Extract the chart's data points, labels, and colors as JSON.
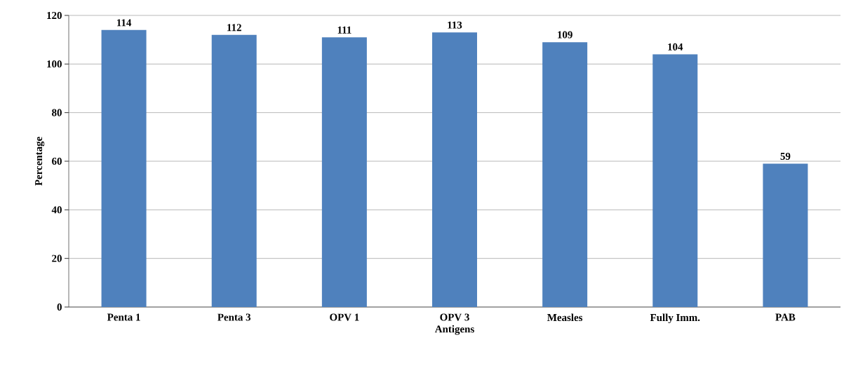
{
  "chart_data": {
    "type": "bar",
    "xlabel": "Antigens",
    "ylabel": "Percentage",
    "categories": [
      "Penta 1",
      "Penta 3",
      "OPV 1",
      "OPV 3",
      "Measles",
      "Fully Imm.",
      "PAB"
    ],
    "values": [
      114,
      112,
      111,
      113,
      109,
      104,
      59
    ],
    "color": "#4f81bd",
    "ylim": [
      0,
      120
    ],
    "yticks": [
      0,
      20,
      40,
      60,
      80,
      100,
      120
    ],
    "grid": "y",
    "data_labels": true
  }
}
